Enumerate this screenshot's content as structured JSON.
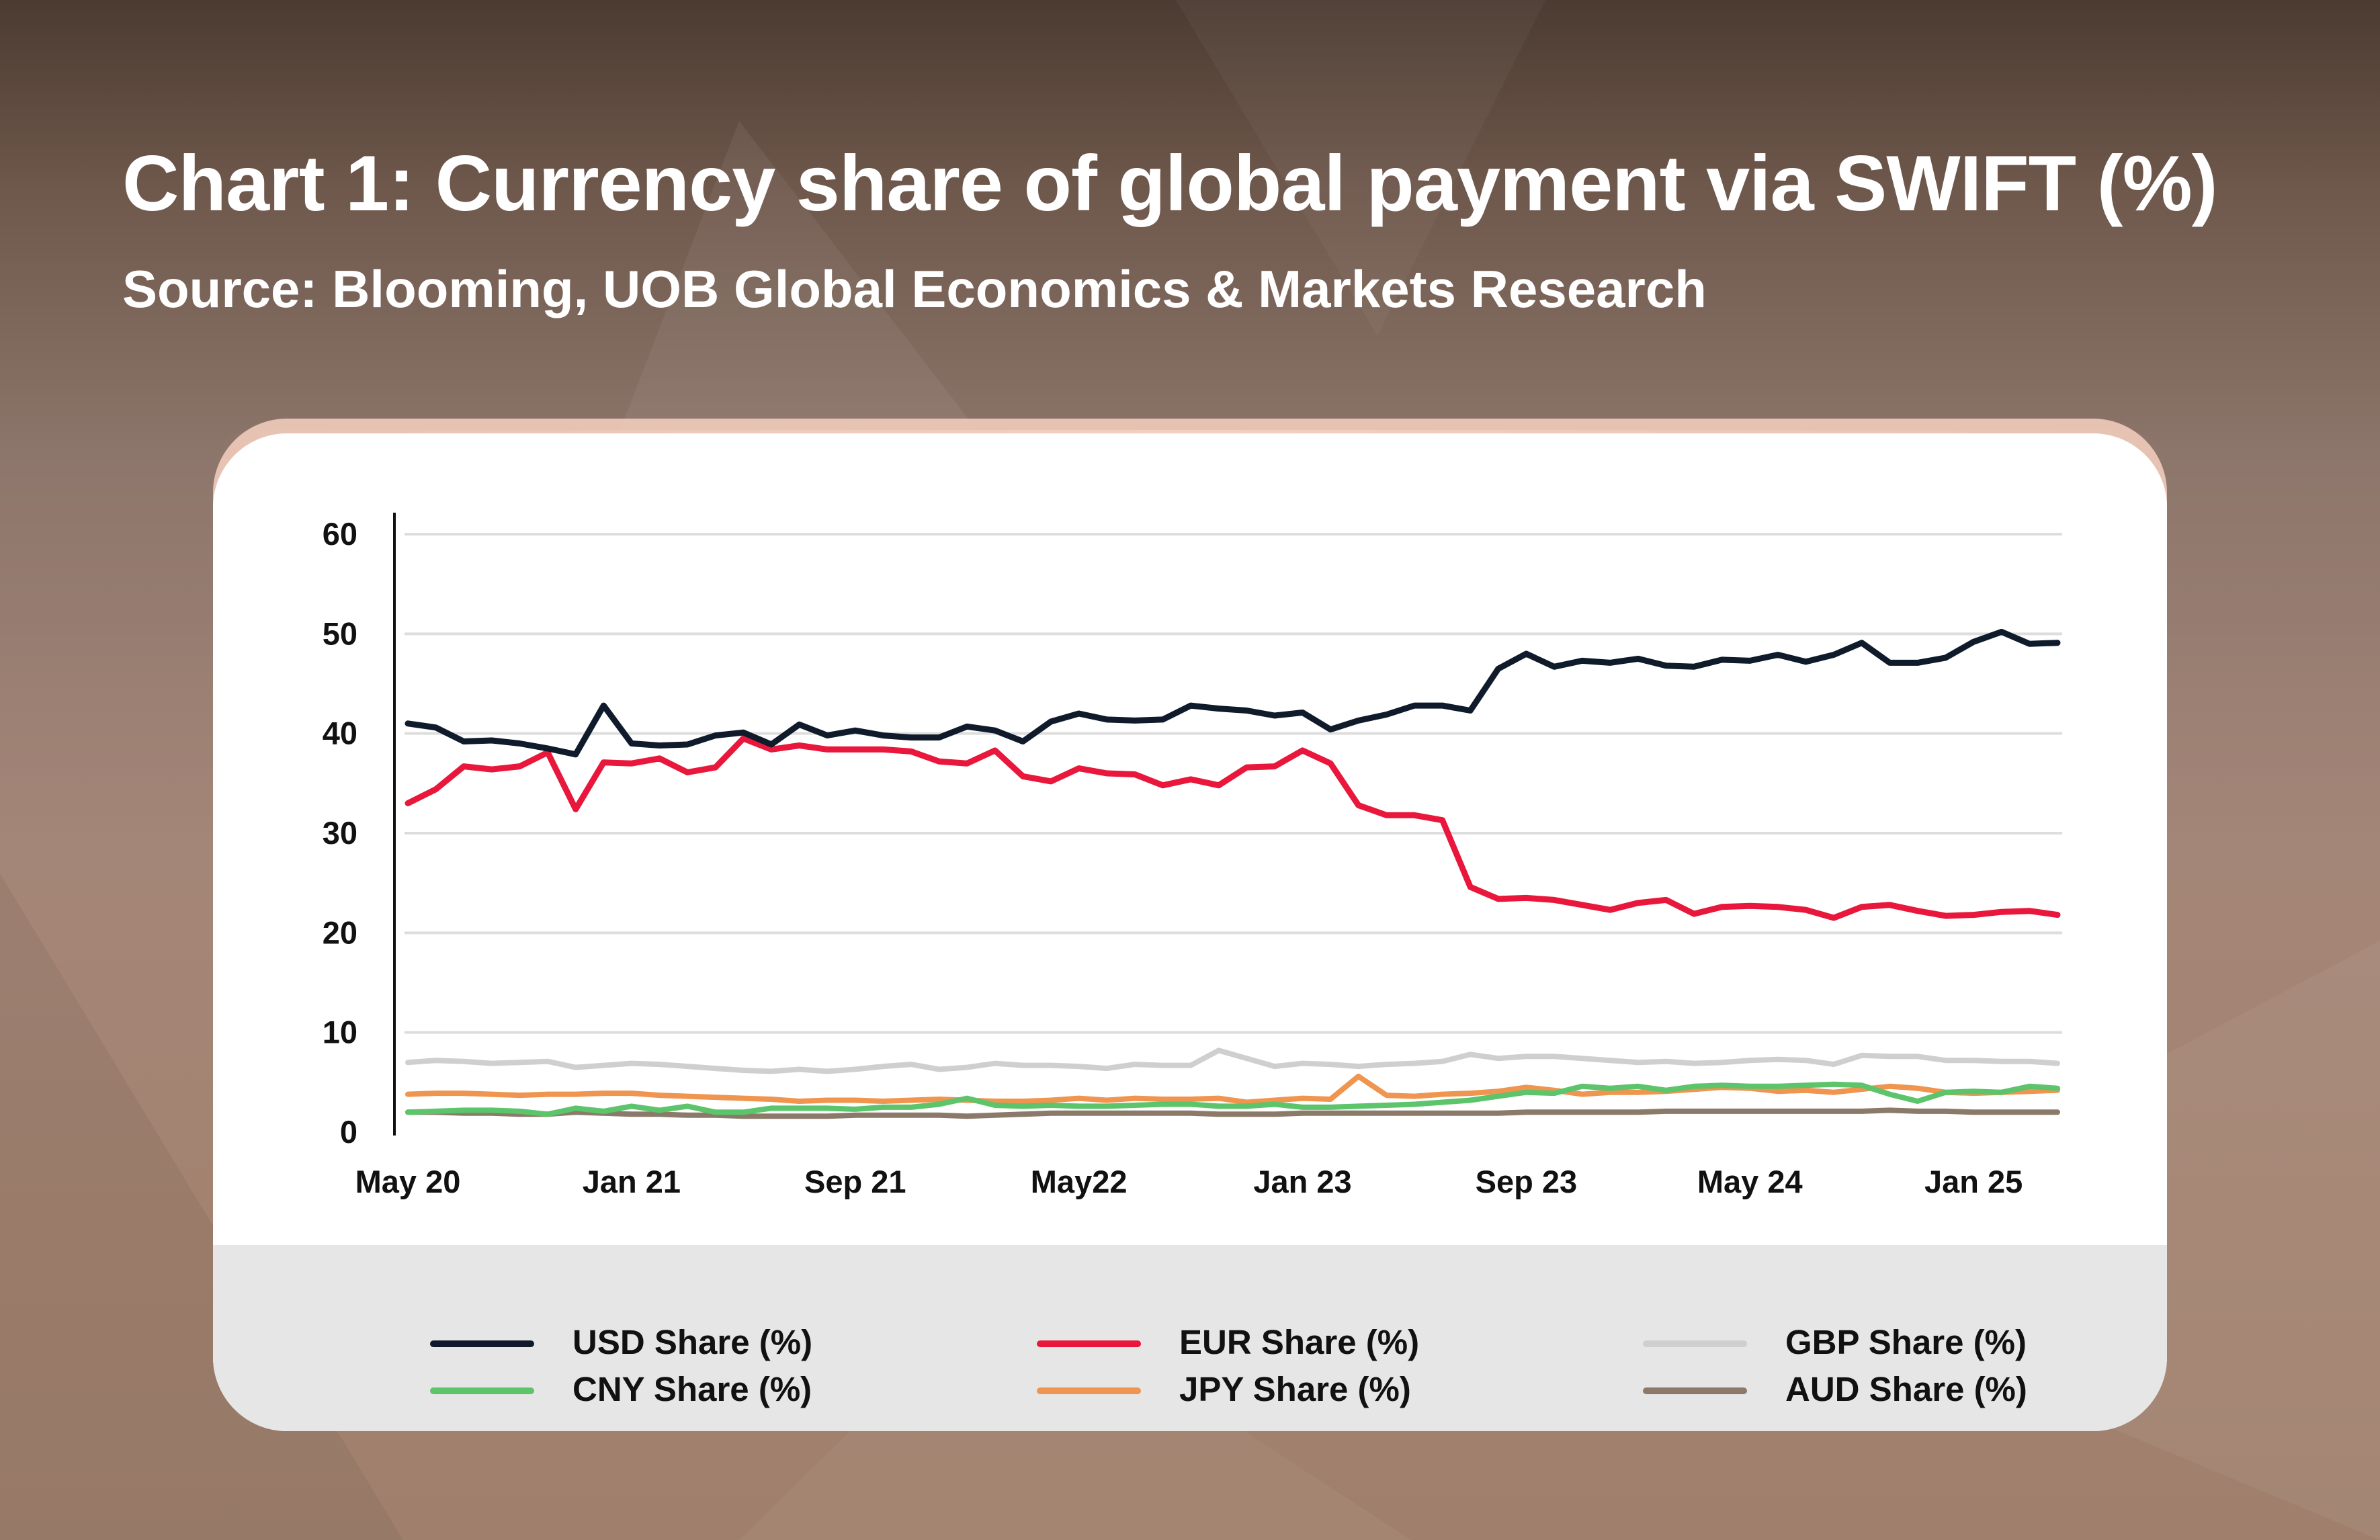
{
  "title": "Chart 1: Currency share of global payment via SWIFT (%)",
  "subtitle": "Source: Blooming, UOB Global Economics & Markets Research",
  "colors": {
    "background_dark": "#4b3b31",
    "background_light": "#a48678",
    "card": "#ffffff",
    "legend_band": "#e6e6e6",
    "grid": "#dddddd"
  },
  "chart_data": {
    "type": "line",
    "title": "Chart 1: Currency share of global payment via SWIFT (%)",
    "xlabel": "",
    "ylabel": "",
    "ylim": [
      0,
      60
    ],
    "yticks": [
      0,
      10,
      20,
      30,
      40,
      50,
      60
    ],
    "grid": true,
    "legend_position": "bottom",
    "x_tick_labels": [
      "May 20",
      "Jan 21",
      "Sep 21",
      "May22",
      "Jan 23",
      "Sep 23",
      "May 24",
      "Jan 25"
    ],
    "x_tick_index": [
      0,
      8,
      16,
      24,
      32,
      40,
      48,
      56
    ],
    "series": [
      {
        "name": "USD Share (%)",
        "color": "#0f1a2a",
        "values": [
          41.0,
          40.6,
          39.2,
          39.3,
          39.0,
          38.5,
          37.9,
          42.8,
          39.0,
          38.8,
          38.9,
          39.8,
          40.1,
          38.9,
          40.9,
          39.8,
          40.3,
          39.8,
          39.6,
          39.6,
          40.7,
          40.3,
          39.2,
          41.2,
          42.0,
          41.4,
          41.3,
          41.4,
          42.8,
          42.5,
          42.3,
          41.8,
          42.1,
          40.4,
          41.3,
          41.9,
          42.8,
          42.8,
          42.3,
          46.5,
          48.0,
          46.7,
          47.3,
          47.1,
          47.5,
          46.8,
          46.7,
          47.4,
          47.3,
          47.9,
          47.2,
          47.9,
          49.1,
          47.1,
          47.1,
          47.6,
          49.2,
          50.2,
          49.0,
          49.1
        ]
      },
      {
        "name": "EUR Share (%)",
        "color": "#e8173b",
        "values": [
          33.0,
          34.4,
          36.7,
          36.4,
          36.7,
          38.1,
          32.4,
          37.1,
          37.0,
          37.5,
          36.1,
          36.6,
          39.5,
          38.4,
          38.8,
          38.4,
          38.4,
          38.4,
          38.2,
          37.2,
          37.0,
          38.3,
          35.7,
          35.2,
          36.5,
          36.0,
          35.9,
          34.8,
          35.4,
          34.8,
          36.6,
          36.7,
          38.3,
          37.0,
          32.8,
          31.8,
          31.8,
          31.3,
          24.6,
          23.4,
          23.5,
          23.3,
          22.8,
          22.3,
          23.0,
          23.3,
          21.9,
          22.6,
          22.7,
          22.6,
          22.3,
          21.5,
          22.6,
          22.8,
          22.2,
          21.7,
          21.8,
          22.1,
          22.2,
          21.8
        ]
      },
      {
        "name": "GBP Share (%)",
        "color": "#cfcfcf",
        "values": [
          7.0,
          7.2,
          7.1,
          6.9,
          7.0,
          7.1,
          6.5,
          6.7,
          6.9,
          6.8,
          6.6,
          6.4,
          6.2,
          6.1,
          6.3,
          6.1,
          6.3,
          6.6,
          6.8,
          6.3,
          6.5,
          6.9,
          6.7,
          6.7,
          6.6,
          6.4,
          6.8,
          6.7,
          6.7,
          8.2,
          7.4,
          6.6,
          6.9,
          6.8,
          6.6,
          6.8,
          6.9,
          7.1,
          7.8,
          7.4,
          7.6,
          7.6,
          7.4,
          7.2,
          7.0,
          7.1,
          6.9,
          7.0,
          7.2,
          7.3,
          7.2,
          6.8,
          7.7,
          7.6,
          7.6,
          7.2,
          7.2,
          7.1,
          7.1,
          6.9
        ]
      },
      {
        "name": "CNY Share (%)",
        "color": "#5cc46a",
        "values": [
          2.0,
          2.1,
          2.2,
          2.2,
          2.1,
          1.8,
          2.4,
          2.1,
          2.6,
          2.2,
          2.6,
          2.0,
          2.0,
          2.4,
          2.4,
          2.4,
          2.3,
          2.5,
          2.5,
          2.8,
          3.4,
          2.7,
          2.6,
          2.7,
          2.6,
          2.6,
          2.7,
          2.8,
          2.8,
          2.6,
          2.6,
          2.8,
          2.5,
          2.5,
          2.6,
          2.7,
          2.8,
          3.0,
          3.2,
          3.6,
          4.0,
          3.9,
          4.6,
          4.4,
          4.6,
          4.2,
          4.6,
          4.7,
          4.6,
          4.6,
          4.7,
          4.8,
          4.7,
          3.8,
          3.1,
          4.0,
          4.1,
          4.0,
          4.6,
          4.4
        ]
      },
      {
        "name": "JPY Share (%)",
        "color": "#f0954f",
        "values": [
          3.8,
          3.9,
          3.9,
          3.8,
          3.7,
          3.8,
          3.8,
          3.9,
          3.9,
          3.7,
          3.6,
          3.5,
          3.4,
          3.3,
          3.1,
          3.2,
          3.2,
          3.1,
          3.2,
          3.3,
          3.2,
          3.1,
          3.1,
          3.2,
          3.4,
          3.2,
          3.4,
          3.3,
          3.3,
          3.4,
          3.0,
          3.2,
          3.4,
          3.3,
          5.6,
          3.7,
          3.6,
          3.8,
          3.9,
          4.1,
          4.5,
          4.2,
          3.8,
          4.0,
          4.0,
          4.1,
          4.3,
          4.5,
          4.4,
          4.1,
          4.2,
          4.0,
          4.3,
          4.6,
          4.4,
          4.0,
          3.9,
          4.0,
          4.1,
          4.2
        ]
      },
      {
        "name": "AUD Share (%)",
        "color": "#8b7a6a",
        "values": [
          2.0,
          2.0,
          1.9,
          1.9,
          1.8,
          1.8,
          2.0,
          1.9,
          1.8,
          1.8,
          1.7,
          1.7,
          1.6,
          1.6,
          1.6,
          1.6,
          1.7,
          1.7,
          1.7,
          1.7,
          1.6,
          1.7,
          1.8,
          1.9,
          1.9,
          1.9,
          1.9,
          1.9,
          1.9,
          1.8,
          1.8,
          1.8,
          1.9,
          1.9,
          1.9,
          1.9,
          1.9,
          1.9,
          1.9,
          1.9,
          2.0,
          2.0,
          2.0,
          2.0,
          2.0,
          2.1,
          2.1,
          2.1,
          2.1,
          2.1,
          2.1,
          2.1,
          2.1,
          2.2,
          2.1,
          2.1,
          2.0,
          2.0,
          2.0,
          2.0
        ]
      }
    ]
  }
}
